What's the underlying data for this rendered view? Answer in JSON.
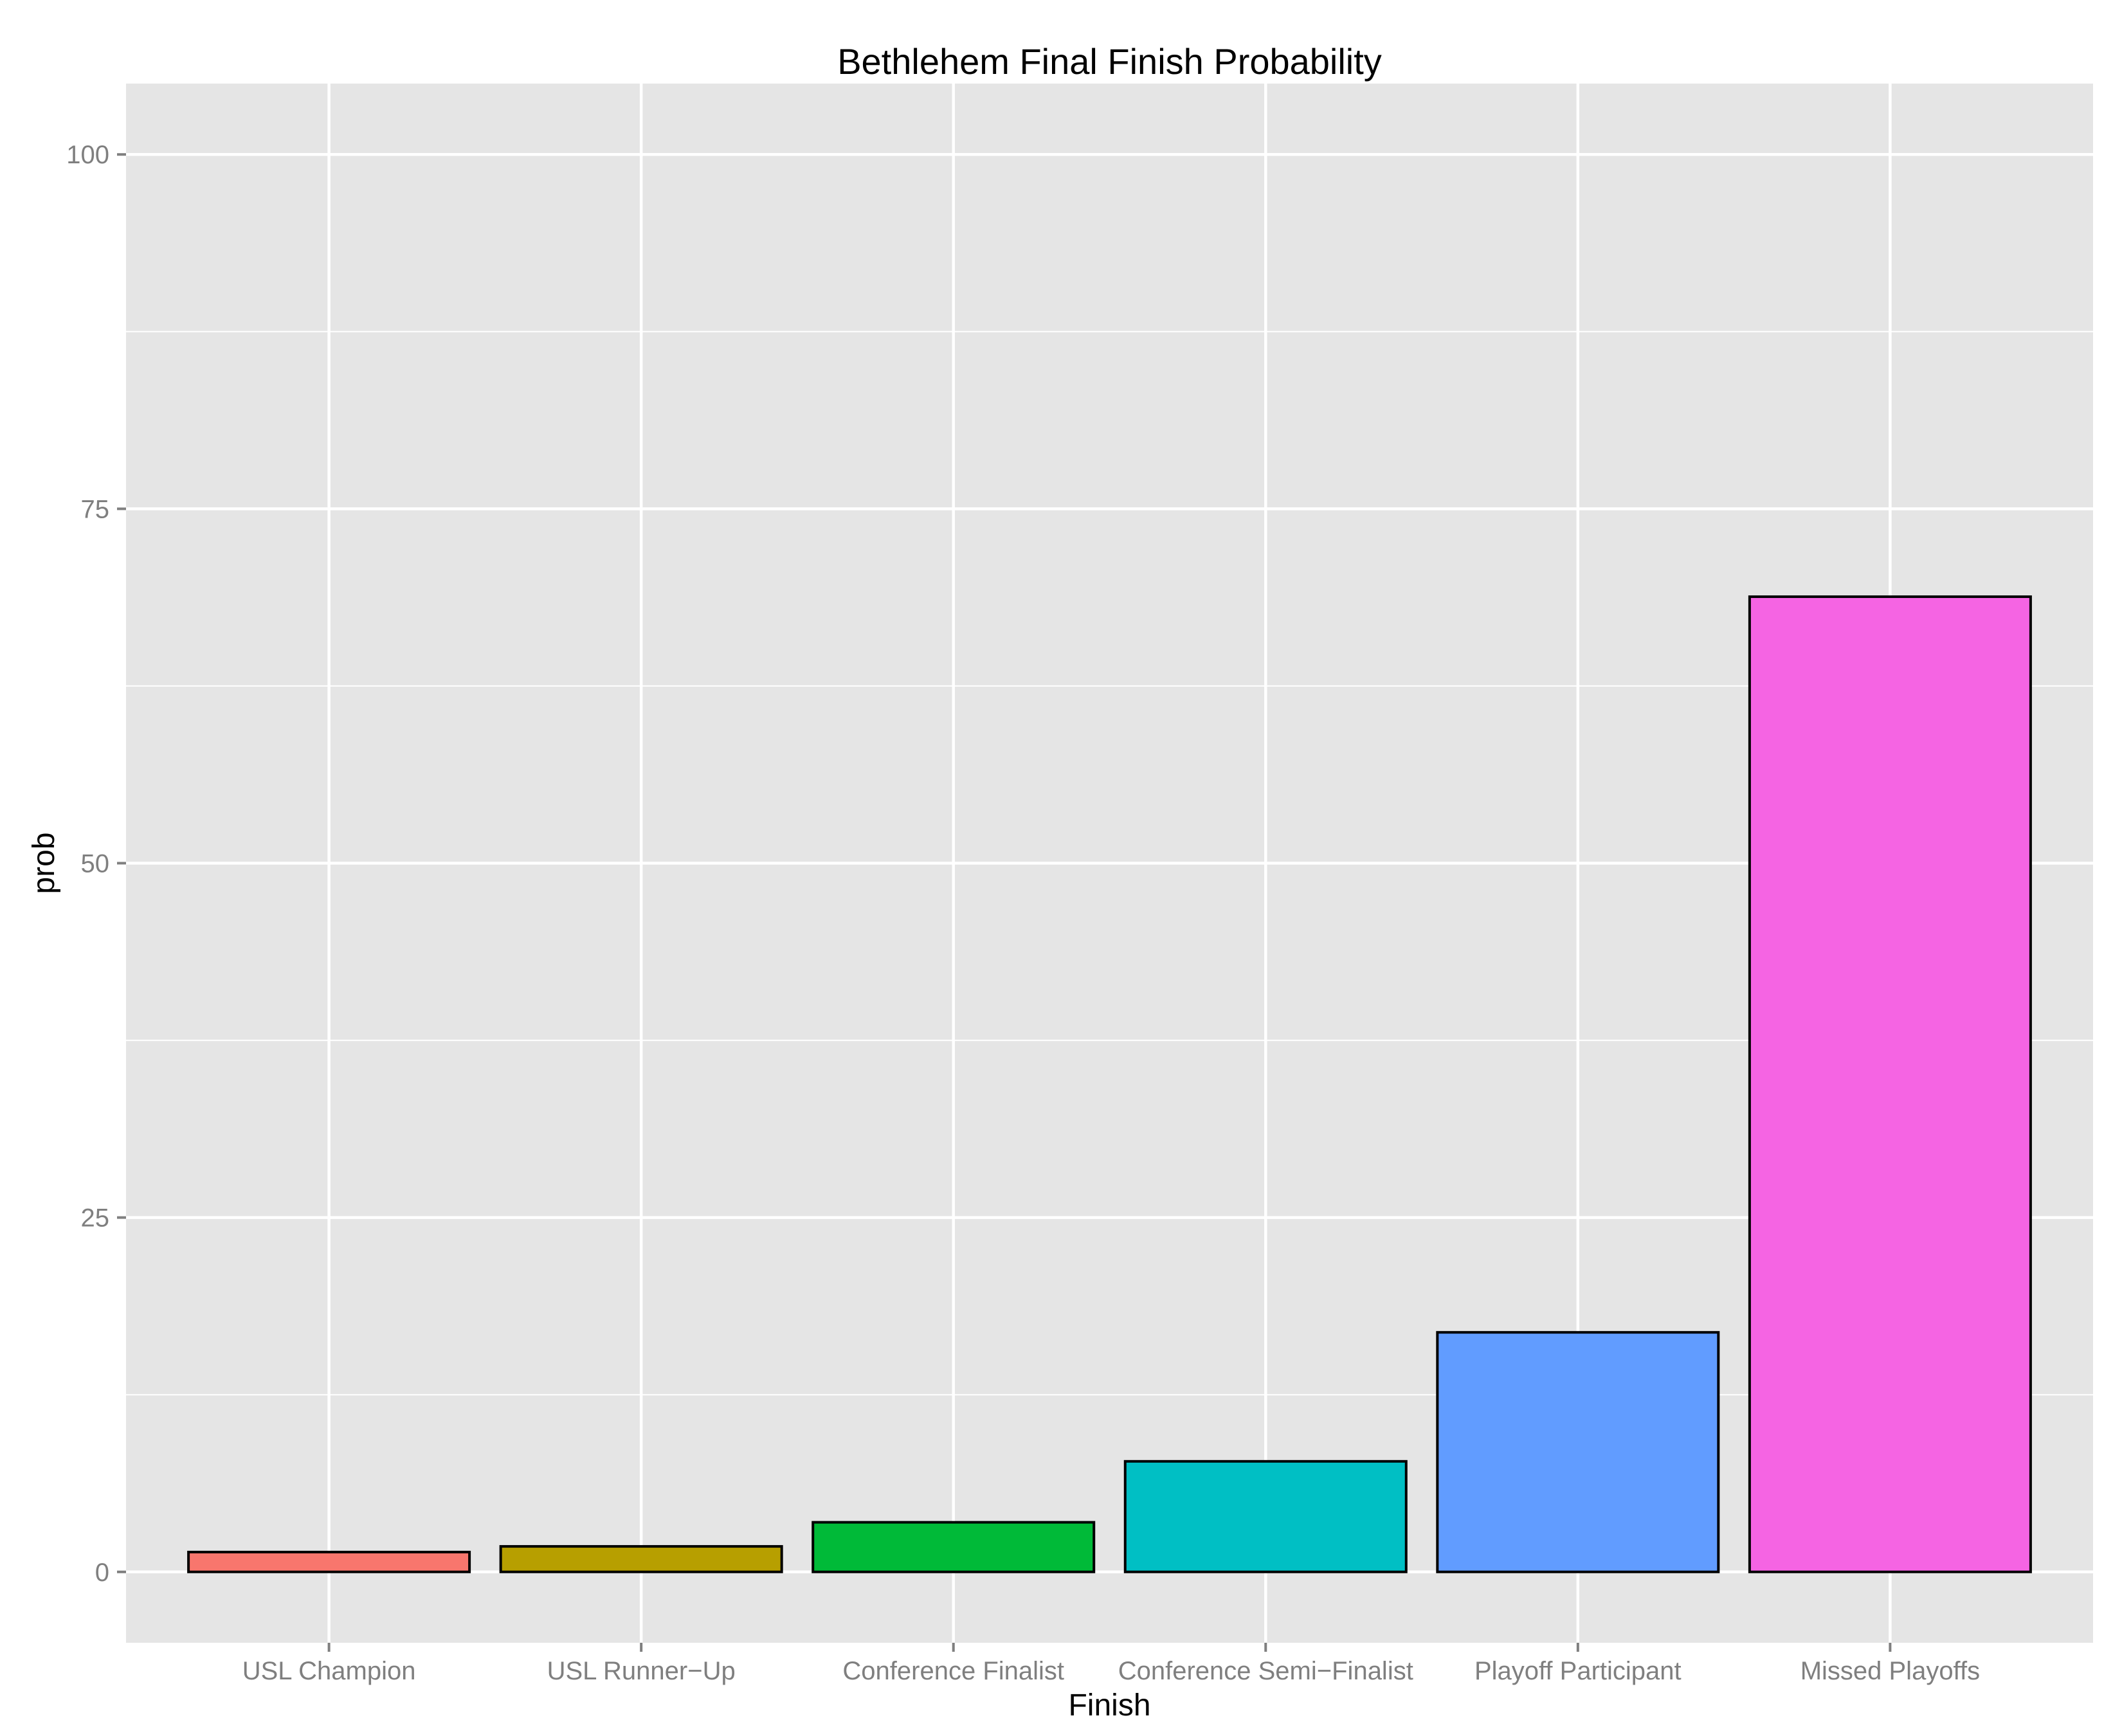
{
  "chart_data": {
    "type": "bar",
    "title": "Bethlehem Final Finish Probability",
    "xlabel": "Finish",
    "ylabel": "prob",
    "categories": [
      "USL Champion",
      "USL Runner−Up",
      "Conference Finalist",
      "Conference Semi−Finalist",
      "Playoff Participant",
      "Missed Playoffs"
    ],
    "values": [
      1.4,
      1.8,
      3.5,
      7.8,
      16.9,
      68.8
    ],
    "colors": [
      "#F8766D",
      "#B79F00",
      "#00BA38",
      "#00BFC4",
      "#619CFF",
      "#F564E3"
    ],
    "ylim": [
      -5,
      105
    ],
    "yticks": [
      0,
      25,
      50,
      75,
      100
    ],
    "ytick_labels": [
      "0",
      "25",
      "50",
      "75",
      "100"
    ],
    "grid": true,
    "legend": "none",
    "panel_background": "#E5E5E5",
    "grid_color": "#FFFFFF",
    "bar_outline": "#000000"
  }
}
